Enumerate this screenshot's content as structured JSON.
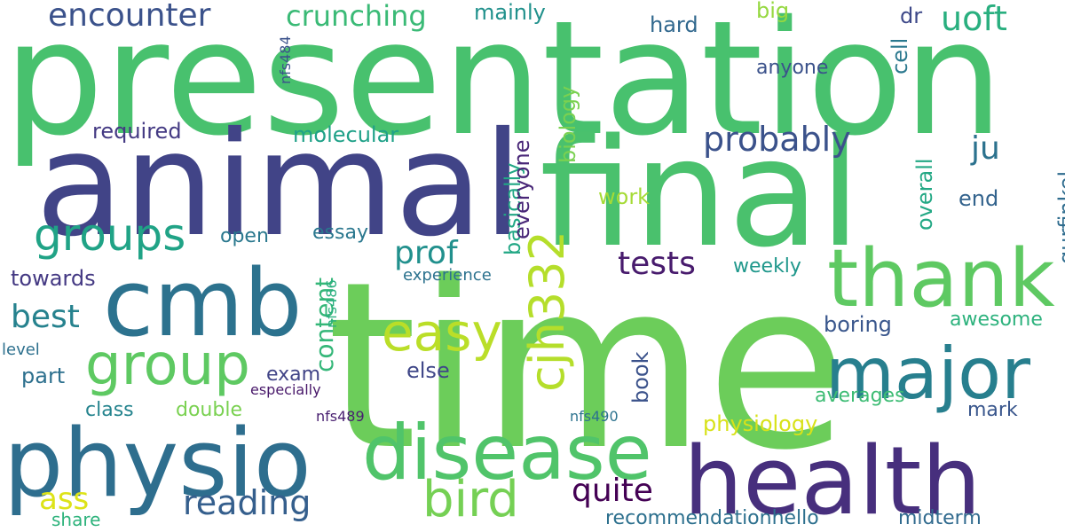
{
  "words": [
    {
      "text": "time",
      "color": "#6ccd5a",
      "vertical": false
    },
    {
      "text": "presentation",
      "color": "#48c16e",
      "vertical": false
    },
    {
      "text": "final",
      "color": "#4ac16d",
      "vertical": false
    },
    {
      "text": "animal",
      "color": "#414487",
      "vertical": false
    },
    {
      "text": "health",
      "color": "#472f7d",
      "vertical": false
    },
    {
      "text": "physio",
      "color": "#2e6e8e",
      "vertical": false
    },
    {
      "text": "disease",
      "color": "#50c46a",
      "vertical": false
    },
    {
      "text": "cmb",
      "color": "#2c728e",
      "vertical": false
    },
    {
      "text": "thank",
      "color": "#5ec962",
      "vertical": false
    },
    {
      "text": "major",
      "color": "#277f8e",
      "vertical": false
    },
    {
      "text": "group",
      "color": "#5ec962",
      "vertical": false
    },
    {
      "text": "groups",
      "color": "#20a386",
      "vertical": false
    },
    {
      "text": "bird",
      "color": "#75d054",
      "vertical": false
    },
    {
      "text": "easy",
      "color": "#bade28",
      "vertical": false
    },
    {
      "text": "cjh332",
      "color": "#b5de2b",
      "vertical": true
    },
    {
      "text": "encounter",
      "color": "#3b528b",
      "vertical": false
    },
    {
      "text": "crunching",
      "color": "#3aba76",
      "vertical": false
    },
    {
      "text": "uoft",
      "color": "#29af7f",
      "vertical": false
    },
    {
      "text": "probably",
      "color": "#3b528b",
      "vertical": false
    },
    {
      "text": "tests",
      "color": "#481b6d",
      "vertical": false
    },
    {
      "text": "prof",
      "color": "#21908d",
      "vertical": false
    },
    {
      "text": "quite",
      "color": "#440154",
      "vertical": false
    },
    {
      "text": "reading",
      "color": "#355f8d",
      "vertical": false
    },
    {
      "text": "best",
      "color": "#26828e",
      "vertical": false
    },
    {
      "text": "content",
      "color": "#35b779",
      "vertical": true
    },
    {
      "text": "ju",
      "color": "#2c728e",
      "vertical": false
    },
    {
      "text": "ass",
      "color": "#dde318",
      "vertical": false
    },
    {
      "text": "mainly",
      "color": "#21918c",
      "vertical": false
    },
    {
      "text": "hard",
      "color": "#31688e",
      "vertical": false
    },
    {
      "text": "big",
      "color": "#95d840",
      "vertical": false
    },
    {
      "text": "dr",
      "color": "#3e4989",
      "vertical": false
    },
    {
      "text": "cell",
      "color": "#2a788e",
      "vertical": true
    },
    {
      "text": "anyone",
      "color": "#3b528b",
      "vertical": false
    },
    {
      "text": "nfs484",
      "color": "#3b528b",
      "vertical": true
    },
    {
      "text": "required",
      "color": "#443a83",
      "vertical": false
    },
    {
      "text": "molecular",
      "color": "#1fa188",
      "vertical": false
    },
    {
      "text": "basically",
      "color": "#22a785",
      "vertical": true
    },
    {
      "text": "everyone",
      "color": "#482677",
      "vertical": true
    },
    {
      "text": "biology",
      "color": "#7ad151",
      "vertical": true
    },
    {
      "text": "overall",
      "color": "#22a884",
      "vertical": true
    },
    {
      "text": "work",
      "color": "#a5db36",
      "vertical": false
    },
    {
      "text": "end",
      "color": "#33638d",
      "vertical": false
    },
    {
      "text": "gurfinkel",
      "color": "#2f6c8e",
      "vertical": true
    },
    {
      "text": "open",
      "color": "#2a788e",
      "vertical": false
    },
    {
      "text": "essay",
      "color": "#2a778e",
      "vertical": false
    },
    {
      "text": "weekly",
      "color": "#1f978b",
      "vertical": false
    },
    {
      "text": "towards",
      "color": "#443983",
      "vertical": false
    },
    {
      "text": "nfs486",
      "color": "#29af7f",
      "vertical": true
    },
    {
      "text": "experience",
      "color": "#2c728e",
      "vertical": false
    },
    {
      "text": "awesome",
      "color": "#2db27d",
      "vertical": false
    },
    {
      "text": "boring",
      "color": "#39568c",
      "vertical": false
    },
    {
      "text": "level",
      "color": "#2d708e",
      "vertical": false
    },
    {
      "text": "part",
      "color": "#2d708e",
      "vertical": false
    },
    {
      "text": "exam",
      "color": "#414487",
      "vertical": false
    },
    {
      "text": "especially",
      "color": "#48186a",
      "vertical": false
    },
    {
      "text": "else",
      "color": "#3f4788",
      "vertical": false
    },
    {
      "text": "book",
      "color": "#3b528b",
      "vertical": true
    },
    {
      "text": "averages",
      "color": "#3dbc74",
      "vertical": false
    },
    {
      "text": "class",
      "color": "#25848e",
      "vertical": false
    },
    {
      "text": "double",
      "color": "#7ad151",
      "vertical": false
    },
    {
      "text": "nfs489",
      "color": "#481f70",
      "vertical": false
    },
    {
      "text": "nfs490",
      "color": "#2c728e",
      "vertical": false
    },
    {
      "text": "mark",
      "color": "#39568c",
      "vertical": false
    },
    {
      "text": "physiology",
      "color": "#d8e219",
      "vertical": false
    },
    {
      "text": "recommendationhello",
      "color": "#2d708e",
      "vertical": false
    },
    {
      "text": "midterm",
      "color": "#306a8e",
      "vertical": false
    },
    {
      "text": "share",
      "color": "#2eb37c",
      "vertical": false
    }
  ]
}
